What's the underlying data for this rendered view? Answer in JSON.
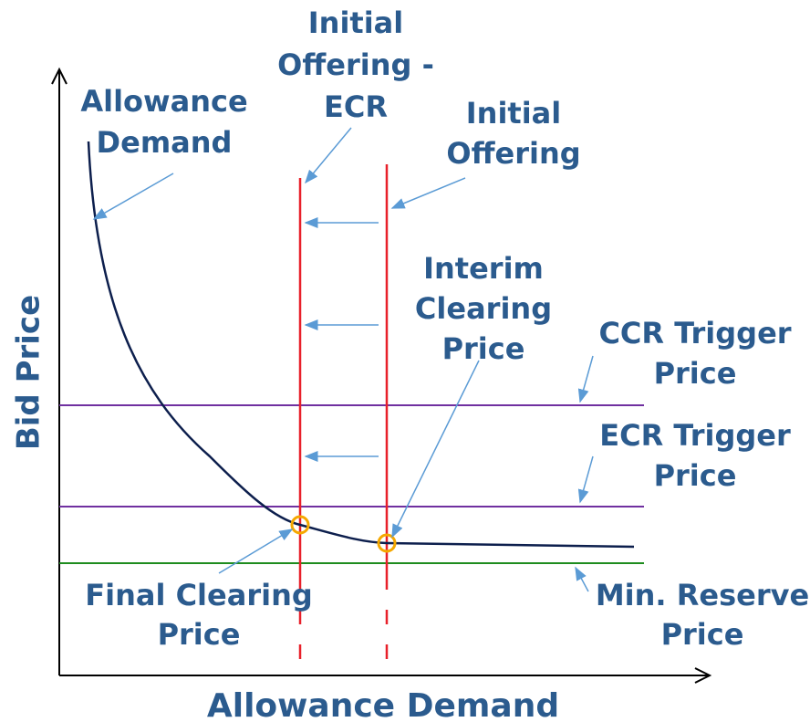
{
  "labels": {
    "y_axis": "Bid Price",
    "x_axis": "Allowance Demand",
    "curve": [
      "Allowance",
      "Demand"
    ],
    "initial_offering_ecr": [
      "Initial",
      "Offering -",
      "ECR"
    ],
    "initial_offering": [
      "Initial",
      "Offering"
    ],
    "interim_clearing_price": [
      "Interim",
      "Clearing",
      "Price"
    ],
    "ccr_trigger_price": [
      "CCR Trigger",
      "Price"
    ],
    "ecr_trigger_price": [
      "ECR Trigger",
      "Price"
    ],
    "final_clearing_price": [
      "Final Clearing",
      "Price"
    ],
    "min_reserve_price": [
      "Min. Reserve",
      "Price"
    ]
  }
}
